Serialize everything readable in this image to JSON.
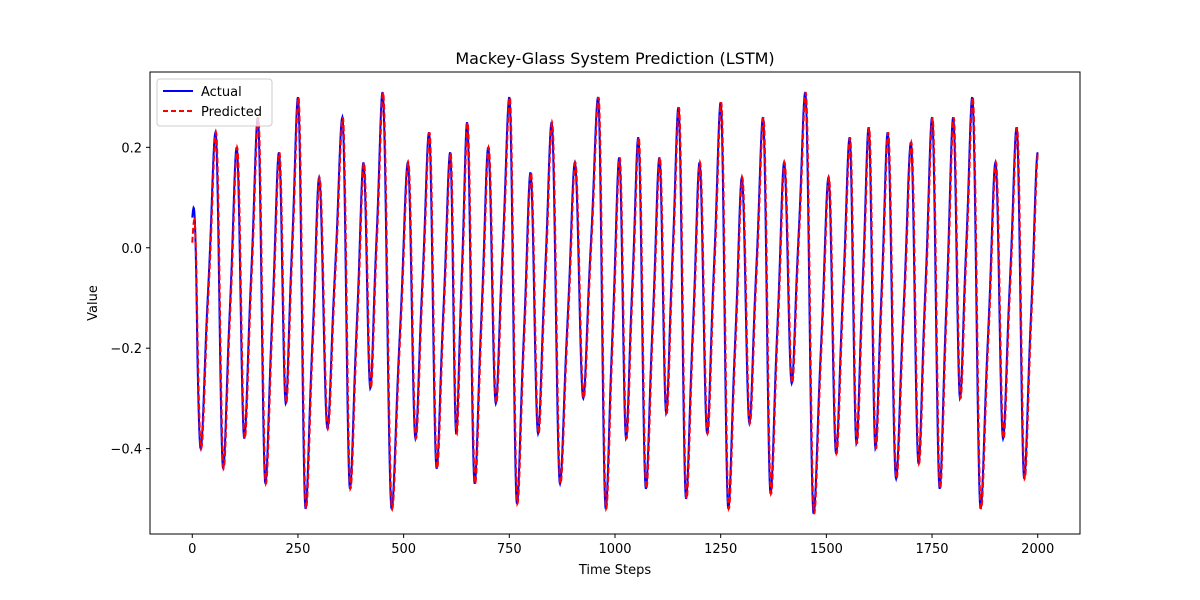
{
  "chart_data": {
    "type": "line",
    "title": "Mackey-Glass System Prediction (LSTM)",
    "xlabel": "Time Steps",
    "ylabel": "Value",
    "xlim": [
      -100,
      2100
    ],
    "ylim": [
      -0.57,
      0.35
    ],
    "x_ticks": [
      0,
      250,
      500,
      750,
      1000,
      1250,
      1500,
      1750,
      2000
    ],
    "x_tick_labels": [
      "0",
      "250",
      "500",
      "750",
      "1000",
      "1250",
      "1500",
      "1750",
      "2000"
    ],
    "y_ticks": [
      0.2,
      0.0,
      -0.2,
      -0.4
    ],
    "y_tick_labels": [
      "0.2",
      "0.0",
      "−0.2",
      "−0.4"
    ],
    "grid": false,
    "legend_position": "top-left",
    "peak_times": [
      0,
      55,
      105,
      155,
      205,
      250,
      300,
      355,
      405,
      450,
      510,
      560,
      610,
      650,
      700,
      750,
      800,
      850,
      905,
      960,
      1010,
      1055,
      1105,
      1150,
      1200,
      1250,
      1300,
      1350,
      1400,
      1450,
      1505,
      1555,
      1600,
      1645,
      1700,
      1750,
      1800,
      1845,
      1900,
      1950,
      2000
    ],
    "peak_values": [
      0.17,
      0.23,
      0.2,
      0.26,
      0.19,
      0.3,
      0.14,
      0.26,
      0.17,
      0.31,
      0.17,
      0.23,
      0.19,
      0.25,
      0.2,
      0.3,
      0.15,
      0.25,
      0.17,
      0.3,
      0.18,
      0.22,
      0.18,
      0.28,
      0.17,
      0.29,
      0.14,
      0.26,
      0.17,
      0.31,
      0.14,
      0.22,
      0.24,
      0.23,
      0.21,
      0.26,
      0.26,
      0.3,
      0.17,
      0.24,
      0.19
    ],
    "trough_values": [
      -0.4,
      -0.44,
      -0.38,
      -0.47,
      -0.31,
      -0.52,
      -0.36,
      -0.48,
      -0.28,
      -0.52,
      -0.38,
      -0.44,
      -0.37,
      -0.47,
      -0.31,
      -0.51,
      -0.37,
      -0.47,
      -0.3,
      -0.52,
      -0.38,
      -0.48,
      -0.33,
      -0.5,
      -0.37,
      -0.52,
      -0.35,
      -0.49,
      -0.27,
      -0.53,
      -0.41,
      -0.39,
      -0.4,
      -0.46,
      -0.43,
      -0.48,
      -0.3,
      -0.52,
      -0.38,
      -0.46
    ],
    "series": [
      {
        "name": "Actual",
        "color": "#0000ff",
        "style": "solid"
      },
      {
        "name": "Predicted",
        "color": "#ff0000",
        "style": "dashed"
      }
    ]
  }
}
